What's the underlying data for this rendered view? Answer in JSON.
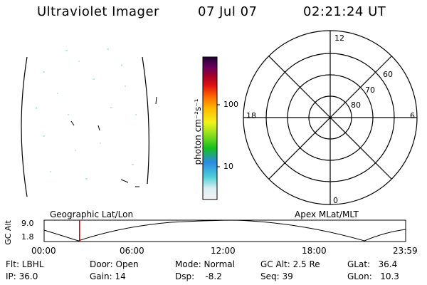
{
  "header": {
    "instrument": "Ultraviolet Imager",
    "date": "07 Jul 07",
    "time": "02:21:24 UT"
  },
  "colorbar": {
    "label": "photon cm⁻²s⁻¹",
    "ticks": [
      "100",
      "10"
    ]
  },
  "polar": {
    "mlt_labels": [
      "12",
      "18",
      "6",
      "0"
    ],
    "lat_labels": [
      "60",
      "70",
      "80"
    ]
  },
  "orbit": {
    "ylabel": "GC Alt",
    "yticks": [
      "9.0",
      "1.8"
    ],
    "left_title": "Geographic Lat/Lon",
    "right_title": "Apex  MLat/MLT",
    "xticks": [
      "00:00",
      "06:00",
      "12:00",
      "18:00",
      "23:59"
    ],
    "marker_time": "02:21",
    "marker_color": "#cc0000"
  },
  "status": {
    "flt": "Flt: LBHL",
    "ip": "IP: 36.0",
    "door": "Door: Open",
    "gain": "Gain: 14",
    "mode": "Mode: Normal",
    "dsp": "Dsp:    -8.2",
    "gcalt": "GC Alt: 2.5 Re",
    "seq": "Seq: 39",
    "glat": "GLat:   36.4",
    "glon": "GLon:   10.3"
  }
}
